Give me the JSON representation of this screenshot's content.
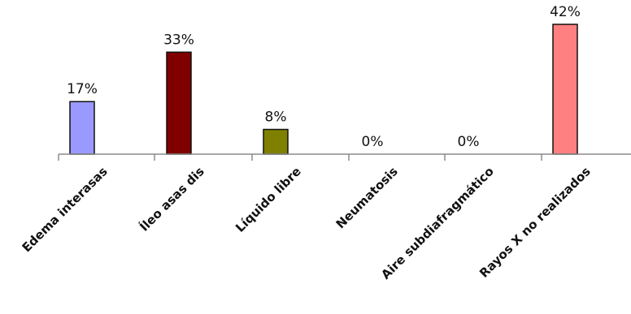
{
  "chart_data": {
    "type": "bar",
    "categories": [
      "Edema interasas",
      "Íleo asas dis",
      "Líquido libre",
      "Neumatosis",
      "Aire subdiafragmático",
      "Rayos X no realizados"
    ],
    "values": [
      17,
      33,
      8,
      0,
      0,
      42
    ],
    "data_labels": [
      "17%",
      "33%",
      "8%",
      "0%",
      "0%",
      "42%"
    ],
    "colors": [
      "#9999FF",
      "#800000",
      "#808000",
      "#808000",
      "#808000",
      "#FF8080"
    ],
    "title": "",
    "xlabel": "",
    "ylabel": "",
    "ylim": [
      0,
      42
    ],
    "grid": false,
    "legend": "none"
  }
}
